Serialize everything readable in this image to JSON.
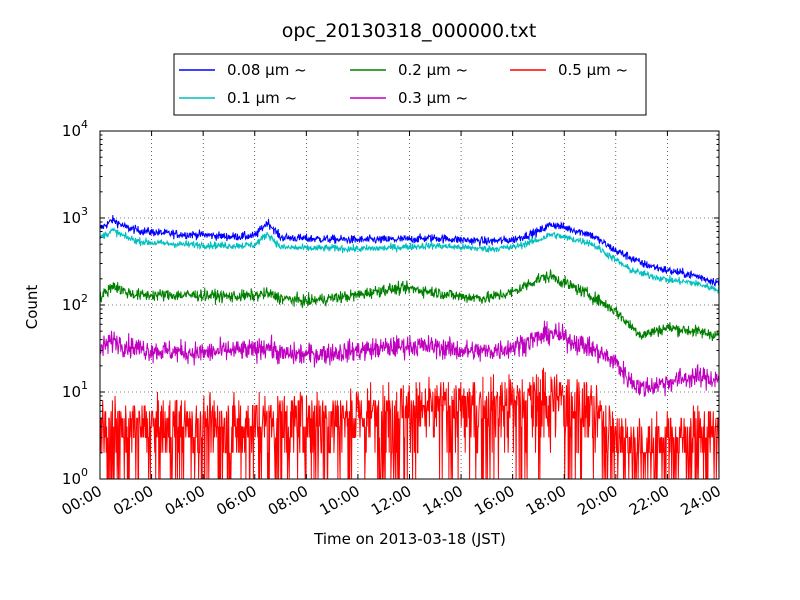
{
  "chart_data": {
    "type": "line",
    "title": "opc_20130318_000000.txt",
    "xlabel": "Time on 2013-03-18 (JST)",
    "ylabel": "Count",
    "yscale": "log",
    "ylim": [
      1,
      10000
    ],
    "xlim": [
      "00:00",
      "24:00"
    ],
    "grid": true,
    "legend_position": "top",
    "x_tick_labels": [
      "00:00",
      "02:00",
      "04:00",
      "06:00",
      "08:00",
      "10:00",
      "12:00",
      "14:00",
      "16:00",
      "18:00",
      "20:00",
      "22:00",
      "24:00"
    ],
    "y_ticks": [
      {
        "value": 1,
        "base": "10",
        "exp": "0"
      },
      {
        "value": 10,
        "base": "10",
        "exp": "1"
      },
      {
        "value": 100,
        "base": "10",
        "exp": "2"
      },
      {
        "value": 1000,
        "base": "10",
        "exp": "3"
      },
      {
        "value": 10000,
        "base": "10",
        "exp": "4"
      }
    ],
    "x_hours": [
      0,
      0.5,
      1,
      1.5,
      2,
      3,
      4,
      5,
      6,
      6.5,
      7,
      8,
      9,
      10,
      11,
      12,
      13,
      14,
      15,
      16,
      17,
      17.5,
      18,
      19,
      20,
      20.5,
      21,
      22,
      23,
      24
    ],
    "series": [
      {
        "name": "0.08 μm ~",
        "color": "#0000ff",
        "noise": 0.035,
        "values": [
          750,
          950,
          780,
          720,
          690,
          650,
          640,
          610,
          620,
          900,
          600,
          580,
          570,
          560,
          565,
          570,
          590,
          560,
          540,
          560,
          700,
          850,
          780,
          650,
          420,
          360,
          300,
          250,
          220,
          180
        ]
      },
      {
        "name": "0.1 μm ~",
        "color": "#00bfbf",
        "noise": 0.03,
        "values": [
          600,
          720,
          600,
          540,
          520,
          500,
          490,
          480,
          490,
          660,
          460,
          450,
          450,
          440,
          450,
          470,
          480,
          460,
          440,
          460,
          560,
          650,
          600,
          520,
          330,
          260,
          230,
          195,
          180,
          150
        ]
      },
      {
        "name": "0.2 μm ~",
        "color": "#008000",
        "noise": 0.05,
        "values": [
          120,
          170,
          140,
          130,
          130,
          130,
          130,
          125,
          128,
          135,
          120,
          110,
          120,
          130,
          150,
          155,
          140,
          125,
          120,
          140,
          200,
          215,
          180,
          130,
          85,
          60,
          45,
          55,
          50,
          45
        ]
      },
      {
        "name": "0.3 μm ~",
        "color": "#bf00bf",
        "noise": 0.09,
        "values": [
          30,
          40,
          34,
          32,
          30,
          29,
          28,
          30,
          30,
          34,
          27,
          27,
          28,
          30,
          32,
          34,
          33,
          30,
          29,
          33,
          42,
          48,
          42,
          32,
          22,
          14,
          11,
          13,
          15,
          14
        ]
      },
      {
        "name": "0.5 μm ~",
        "color": "#ff0000",
        "noise": 0.3,
        "values": [
          3.5,
          3.6,
          3.6,
          3.7,
          3.8,
          3.8,
          3.9,
          4.0,
          4.2,
          4.3,
          4.5,
          4.8,
          5.0,
          5.2,
          5.5,
          6.0,
          6.2,
          6.5,
          6.8,
          7.0,
          7.8,
          8.5,
          8.0,
          6.5,
          3.0,
          2.5,
          2.3,
          2.6,
          3.0,
          3.0
        ]
      }
    ]
  }
}
